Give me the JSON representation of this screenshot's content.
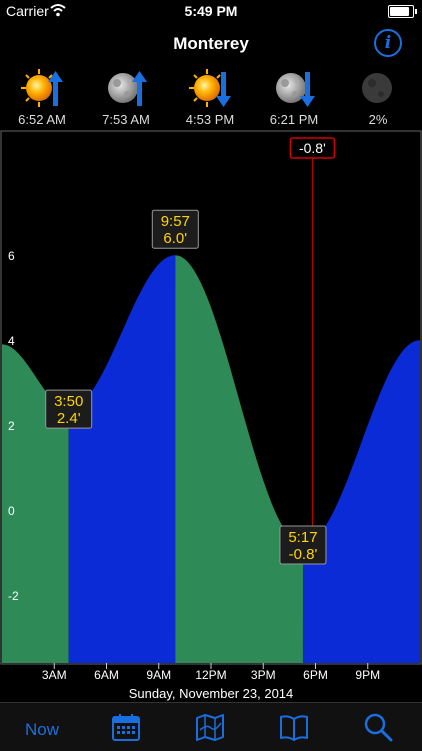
{
  "status_bar": {
    "carrier": "Carrier",
    "time": "5:49 PM"
  },
  "header": {
    "title": "Monterey",
    "info_icon": "info-icon"
  },
  "astro": [
    {
      "icon": "sunrise-icon",
      "time": "6:52 AM"
    },
    {
      "icon": "moonrise-icon",
      "time": "7:53 AM"
    },
    {
      "icon": "sunset-icon",
      "time": "4:53 PM"
    },
    {
      "icon": "moonset-icon",
      "time": "6:21 PM"
    },
    {
      "icon": "moon-phase-icon",
      "value": "2%"
    }
  ],
  "colors": {
    "rising": "#0a2bd6",
    "falling": "#2e8b57",
    "accent": "#1a6fe0",
    "label": "#ffd400",
    "marker": "#d00000"
  },
  "chart_data": {
    "type": "area",
    "x_unit": "hours",
    "y_unit": "ft",
    "xlim": [
      0,
      24
    ],
    "ylim": [
      -3.6,
      8.9
    ],
    "y_ticks": [
      -2,
      0,
      2,
      4,
      6
    ],
    "y_tick_labels": [
      "-2",
      "0",
      "2",
      "4",
      "6"
    ],
    "x_ticks": [
      3,
      6,
      9,
      12,
      15,
      18,
      21
    ],
    "x_tick_labels": [
      "3AM",
      "6AM",
      "9AM",
      "12PM",
      "3PM",
      "6PM",
      "9PM"
    ],
    "points": [
      {
        "x": 0,
        "y": 3.9
      },
      {
        "x": 3.83,
        "y": 2.4
      },
      {
        "x": 9.95,
        "y": 6.0
      },
      {
        "x": 17.28,
        "y": -0.8
      },
      {
        "x": 24,
        "y": 4.0
      }
    ],
    "extremes": [
      {
        "time": "3:50",
        "height": "2.4'",
        "x": 3.83,
        "y": 2.4
      },
      {
        "time": "9:57",
        "height": "6.0'",
        "x": 9.95,
        "y": 6.0
      },
      {
        "time": "5:17",
        "height": "-0.8'",
        "x": 17.28,
        "y": -0.8
      }
    ],
    "current": {
      "label": "-0.8'",
      "x": 17.82,
      "y": -0.8
    }
  },
  "date": "Sunday, November 23, 2014",
  "tabs": [
    {
      "label": "Now",
      "icon": "now"
    },
    {
      "icon": "calendar-icon"
    },
    {
      "icon": "map-icon"
    },
    {
      "icon": "book-icon"
    },
    {
      "icon": "search-icon"
    }
  ]
}
